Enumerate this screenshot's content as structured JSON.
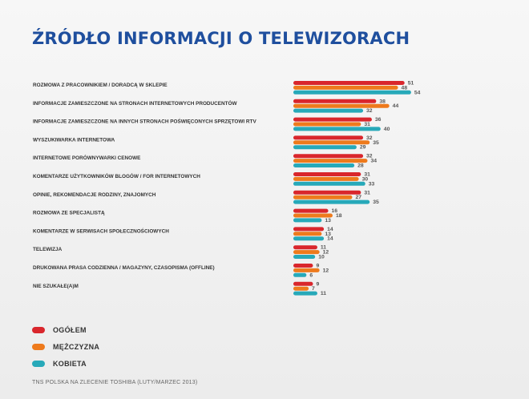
{
  "title": "ŹRÓDŁO INFORMACJI O TELEWIZORACH",
  "source": "TNS POLSKA NA ZLECENIE TOSHIBA (LUTY/MARZEC 2013)",
  "colors": {
    "ogolem": "#d9262c",
    "mezczyzna": "#ee7a1c",
    "kobieta": "#27a9b9"
  },
  "chart_data": {
    "type": "bar",
    "orientation": "horizontal",
    "title": "ŹRÓDŁO INFORMACJI O TELEWIZORACH",
    "categories": [
      "ROZMOWA Z PRACOWNIKIEM / DORADCĄ W SKLEPIE",
      "INFORMACJE ZAMIESZCZONE NA STRONACH INTERNETOWYCH PRODUCENTÓW",
      "INFORMACJE ZAMIESZCZONE NA INNYCH STRONACH POŚWIĘCONYCH SPRZĘTOWI RTV",
      "WYSZUKIWARKA INTERNETOWA",
      "INTERNETOWE PORÓWNYWARKI CENOWE",
      "KOMENTARZE UŻYTKOWNIKÓW BLOGÓW / FOR INTERNETOWYCH",
      "OPINIE, REKOMENDACJE RODZINY, ZNAJOMYCH",
      "ROZMOWA ZE SPECJALISTĄ",
      "KOMENTARZE W SERWISACH SPOŁECZNOŚCIOWYCH",
      "TELEWIZJA",
      "DRUKOWANA PRASA CODZIENNA / MAGAZYNY, CZASOPISMA (OFFLINE)",
      "NIE SZUKAŁE(A)M"
    ],
    "series": [
      {
        "name": "OGÓŁEM",
        "color": "#d9262c",
        "values": [
          51,
          38,
          36,
          32,
          32,
          31,
          31,
          16,
          14,
          11,
          9,
          9
        ]
      },
      {
        "name": "MĘŻCZYZNA",
        "color": "#ee7a1c",
        "values": [
          48,
          44,
          31,
          35,
          34,
          30,
          27,
          18,
          13,
          12,
          12,
          7
        ]
      },
      {
        "name": "KOBIETA",
        "color": "#27a9b9",
        "values": [
          54,
          32,
          40,
          29,
          28,
          33,
          35,
          13,
          14,
          10,
          6,
          11
        ]
      }
    ],
    "xlim": [
      0,
      60
    ],
    "legend_position": "bottom-left",
    "grid": false
  }
}
